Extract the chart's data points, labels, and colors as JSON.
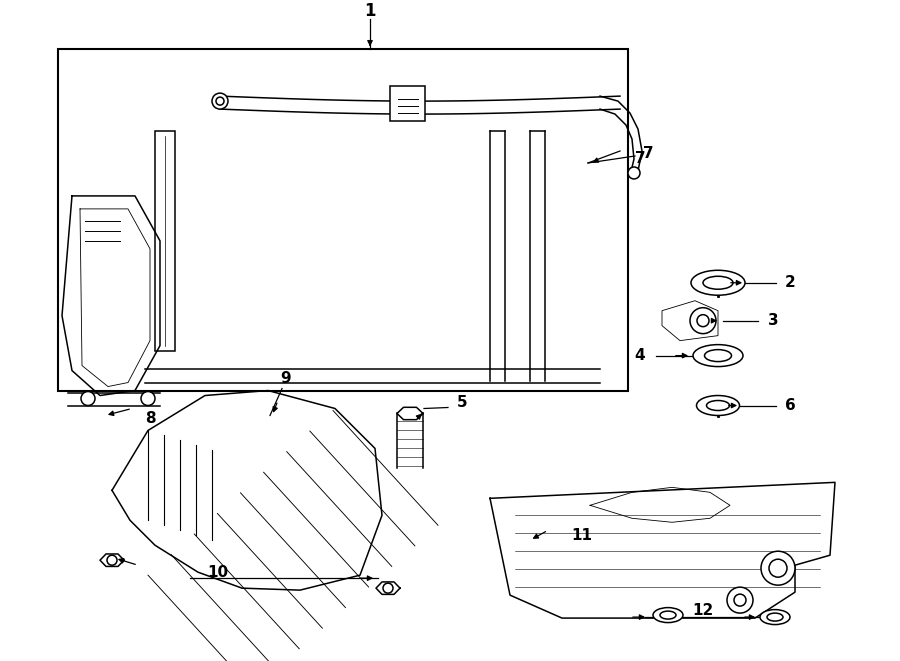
{
  "bg_color": "#ffffff",
  "figsize": [
    9.0,
    6.61
  ],
  "dpi": 100
}
